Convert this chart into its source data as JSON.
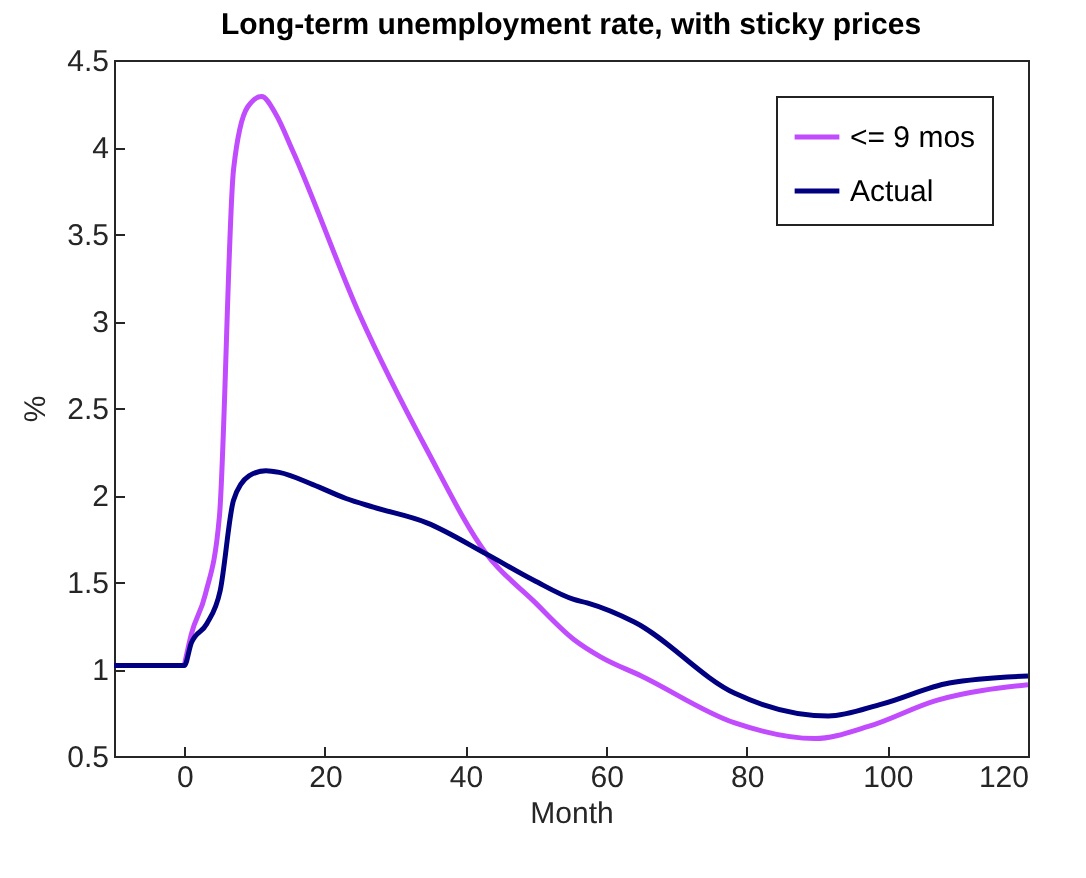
{
  "chart_data": {
    "type": "line",
    "title": "Long-term unemployment rate, with sticky prices",
    "xlabel": "Month",
    "ylabel": "%",
    "xlim": [
      -10,
      120
    ],
    "xticks": [
      0,
      20,
      40,
      60,
      80,
      100,
      120
    ],
    "ylim": [
      0.5,
      4.5
    ],
    "yticks": [
      0.5,
      1,
      1.5,
      2,
      2.5,
      3,
      3.5,
      4,
      4.5
    ],
    "grid": false,
    "legend": "top right",
    "line_style": "solid",
    "marker": "none",
    "series": [
      {
        "name": "<= 9 mos",
        "color": "#c04cfd",
        "x": [
          0,
          1,
          3,
          5,
          7,
          9,
          11,
          13,
          15.4,
          25,
          34.5,
          43,
          49.7,
          55.4,
          59.2,
          65,
          78.3,
          89.7,
          97.3,
          107,
          120
        ],
        "values": [
          1.02,
          1.2,
          1.43,
          1.88,
          3.87,
          4.23,
          4.29,
          4.19,
          3.98,
          3.03,
          2.26,
          1.66,
          1.39,
          1.17,
          1.07,
          0.96,
          0.69,
          0.6,
          0.67,
          0.82,
          0.91
        ]
      },
      {
        "name": "Actual",
        "color": "#000080",
        "x": [
          -10,
          0,
          1,
          3.2,
          5.1,
          7,
          9.2,
          11.6,
          13.5,
          18.3,
          23,
          26.9,
          34.5,
          43,
          49.7,
          55.4,
          57.3,
          64,
          78.3,
          91.6,
          99.3,
          108.8,
          120
        ],
        "values": [
          1.02,
          1.02,
          1.15,
          1.26,
          1.45,
          1.97,
          2.11,
          2.14,
          2.13,
          2.06,
          1.98,
          1.93,
          1.84,
          1.66,
          1.51,
          1.4,
          1.38,
          1.27,
          0.86,
          0.73,
          0.8,
          0.92,
          0.96
        ]
      }
    ]
  }
}
